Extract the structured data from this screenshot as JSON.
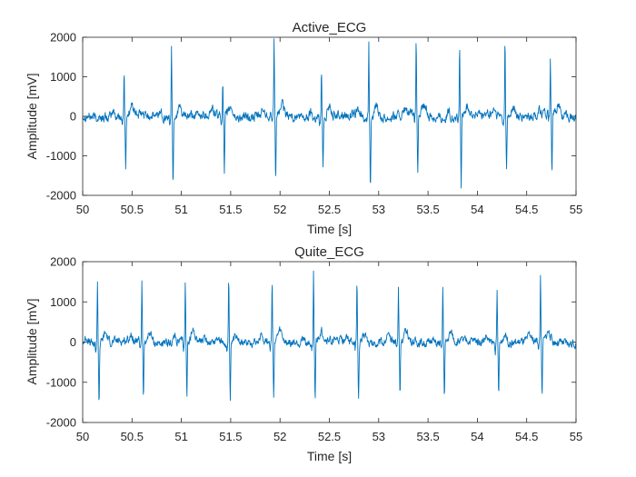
{
  "chart_data": [
    {
      "type": "line",
      "title": "Active_ECG",
      "xlabel": "Time [s]",
      "ylabel": "Amplitude [mV]",
      "xlim": [
        50,
        55
      ],
      "ylim": [
        -2000,
        2000
      ],
      "xticks": [
        50,
        50.5,
        51,
        51.5,
        52,
        52.5,
        53,
        53.5,
        54,
        54.5,
        55
      ],
      "yticks": [
        -2000,
        -1000,
        0,
        1000,
        2000
      ],
      "line_color": "#0072BD",
      "series": [
        {
          "name": "Active_ECG",
          "beats": [
            {
              "t": 50.42,
              "peak": 1100,
              "trough": -1400
            },
            {
              "t": 50.9,
              "peak": 1800,
              "trough": -1650
            },
            {
              "t": 51.42,
              "peak": 950,
              "trough": -1450
            },
            {
              "t": 51.94,
              "peak": 1800,
              "trough": -1650
            },
            {
              "t": 52.42,
              "peak": 1200,
              "trough": -1350
            },
            {
              "t": 52.9,
              "peak": 1900,
              "trough": -1700
            },
            {
              "t": 53.38,
              "peak": 1850,
              "trough": -1600
            },
            {
              "t": 53.82,
              "peak": 1750,
              "trough": -1700
            },
            {
              "t": 54.28,
              "peak": 1950,
              "trough": -1350
            },
            {
              "t": 54.74,
              "peak": 1400,
              "trough": -1550
            }
          ],
          "baseline_noise": 150
        }
      ]
    },
    {
      "type": "line",
      "title": "Quite_ECG",
      "xlabel": "Time [s]",
      "ylabel": "Amplitude [mV]",
      "xlim": [
        50,
        55
      ],
      "ylim": [
        -2000,
        2000
      ],
      "xticks": [
        50,
        50.5,
        51,
        51.5,
        52,
        52.5,
        53,
        53.5,
        54,
        54.5,
        55
      ],
      "yticks": [
        -2000,
        -1000,
        0,
        1000,
        2000
      ],
      "line_color": "#0072BD",
      "series": [
        {
          "name": "Quite_ECG",
          "beats": [
            {
              "t": 50.15,
              "peak": 1600,
              "trough": -1500
            },
            {
              "t": 50.6,
              "peak": 1550,
              "trough": -1450
            },
            {
              "t": 51.04,
              "peak": 1450,
              "trough": -1400
            },
            {
              "t": 51.48,
              "peak": 1600,
              "trough": -1550
            },
            {
              "t": 51.92,
              "peak": 1400,
              "trough": -1400
            },
            {
              "t": 52.34,
              "peak": 1700,
              "trough": -1450
            },
            {
              "t": 52.78,
              "peak": 1500,
              "trough": -1450
            },
            {
              "t": 53.2,
              "peak": 1300,
              "trough": -1350
            },
            {
              "t": 53.65,
              "peak": 1400,
              "trough": -1350
            },
            {
              "t": 54.2,
              "peak": 1250,
              "trough": -1300
            },
            {
              "t": 54.64,
              "peak": 1650,
              "trough": -1450
            }
          ],
          "baseline_noise": 130
        }
      ]
    }
  ]
}
